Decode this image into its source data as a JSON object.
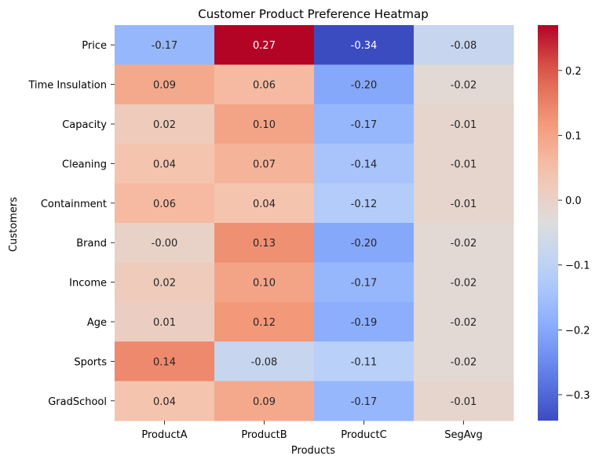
{
  "chart_data": {
    "type": "heatmap",
    "title": "Customer Product Preference Heatmap",
    "xlabel": "Products",
    "ylabel": "Customers",
    "columns": [
      "ProductA",
      "ProductB",
      "ProductC",
      "SegAvg"
    ],
    "rows": [
      "Price",
      "Time Insulation",
      "Capacity",
      "Cleaning",
      "Containment",
      "Brand",
      "Income",
      "Age",
      "Sports",
      "GradSchool"
    ],
    "values": [
      [
        -0.17,
        0.27,
        -0.34,
        -0.08
      ],
      [
        0.09,
        0.06,
        -0.2,
        -0.02
      ],
      [
        0.02,
        0.1,
        -0.17,
        -0.01
      ],
      [
        0.04,
        0.07,
        -0.14,
        -0.01
      ],
      [
        0.06,
        0.04,
        -0.12,
        -0.01
      ],
      [
        -0.0,
        0.13,
        -0.2,
        -0.02
      ],
      [
        0.02,
        0.1,
        -0.17,
        -0.02
      ],
      [
        0.01,
        0.12,
        -0.19,
        -0.02
      ],
      [
        0.14,
        -0.08,
        -0.11,
        -0.02
      ],
      [
        0.04,
        0.09,
        -0.17,
        -0.01
      ]
    ],
    "cell_labels": [
      [
        "-0.17",
        "0.27",
        "-0.34",
        "-0.08"
      ],
      [
        "0.09",
        "0.06",
        "-0.20",
        "-0.02"
      ],
      [
        "0.02",
        "0.10",
        "-0.17",
        "-0.01"
      ],
      [
        "0.04",
        "0.07",
        "-0.14",
        "-0.01"
      ],
      [
        "0.06",
        "0.04",
        "-0.12",
        "-0.01"
      ],
      [
        "-0.00",
        "0.13",
        "-0.20",
        "-0.02"
      ],
      [
        "0.02",
        "0.10",
        "-0.17",
        "-0.02"
      ],
      [
        "0.01",
        "0.12",
        "-0.19",
        "-0.02"
      ],
      [
        "0.14",
        "-0.08",
        "-0.11",
        "-0.02"
      ],
      [
        "0.04",
        "0.09",
        "-0.17",
        "-0.01"
      ]
    ],
    "colormap": "coolwarm",
    "color_range": [
      -0.34,
      0.27
    ],
    "colorbar_ticks": [
      0.2,
      0.1,
      0.0,
      -0.1,
      -0.2,
      -0.3
    ],
    "colorbar_tick_labels": [
      "0.2",
      "0.1",
      "0.0",
      "−0.1",
      "−0.2",
      "−0.3"
    ],
    "grid": false,
    "legend": "colorbar-right"
  }
}
